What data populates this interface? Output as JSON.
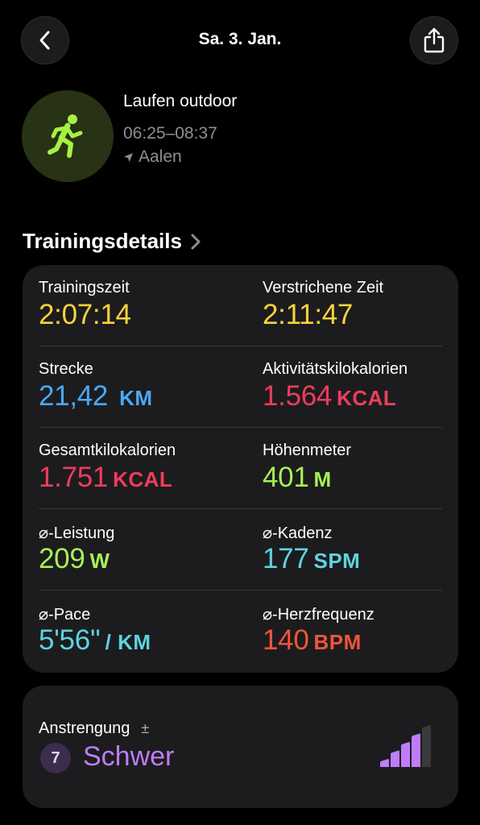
{
  "header": {
    "date": "Sa. 3. Jan."
  },
  "workout": {
    "name": "Laufen outdoor",
    "time_range": "06:25–08:37",
    "location": "Aalen"
  },
  "section": {
    "title": "Trainingsdetails"
  },
  "metrics": [
    {
      "label": "Trainingszeit",
      "value": "2:07:14",
      "unit": "",
      "color": "#f9d23c"
    },
    {
      "label": "Verstrichene Zeit",
      "value": "2:11:47",
      "unit": "",
      "color": "#f9d23c"
    },
    {
      "label": "Strecke",
      "value": "21,42",
      "unit": "KM",
      "color": "#4aa8f5"
    },
    {
      "label": "Aktivitätskilokalorien",
      "value": "1.564",
      "unit": "KCAL",
      "color": "#f03c5c"
    },
    {
      "label": "Gesamtkilokalorien",
      "value": "1.751",
      "unit": "KCAL",
      "color": "#f03c5c"
    },
    {
      "label": "Höhenmeter",
      "value": "401",
      "unit": "M",
      "color": "#a7ef57"
    },
    {
      "label": "⌀-Leistung",
      "value": "209",
      "unit": "W",
      "color": "#a7ef57"
    },
    {
      "label": "⌀-Kadenz",
      "value": "177",
      "unit": "SPM",
      "color": "#5fd3e0"
    },
    {
      "label": "⌀-Pace",
      "value": "5'56''",
      "unit": "/ KM",
      "color": "#5fd3e0"
    },
    {
      "label": "⌀-Herzfrequenz",
      "value": "140",
      "unit": "BPM",
      "color": "#f0553a"
    }
  ],
  "effort": {
    "label": "Anstrengung",
    "symbol": "±",
    "score": "7",
    "level": "Schwer",
    "filled_bars": 4,
    "total_bars": 5,
    "color": "#bf7cf9"
  },
  "icons": {
    "back": "chevron-left-icon",
    "share": "share-icon",
    "workout": "running-figure-icon",
    "location": "location-arrow-icon",
    "section": "chevron-right-icon"
  }
}
